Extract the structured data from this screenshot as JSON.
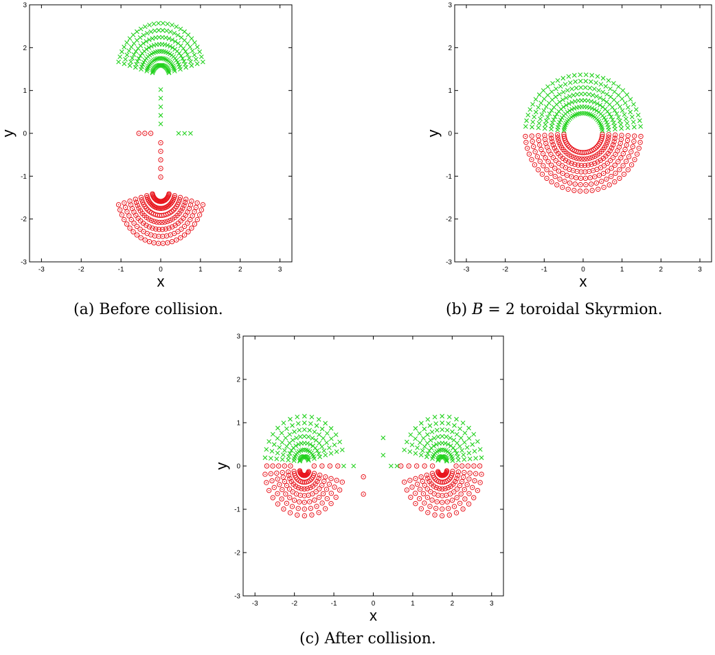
{
  "captions": {
    "a": "(a) Before collision.",
    "b_prefix": "(b) ",
    "b_var": "B",
    "b_suffix": " = 2 toroidal Skyrmion.",
    "c": "(c) After collision."
  },
  "colors": {
    "circle_series": "#e8141c",
    "cross_series": "#22d11e"
  },
  "chart_data": [
    {
      "id": "a",
      "type": "scatter",
      "xlabel": "x",
      "ylabel": "y",
      "xlim": [
        -3.3,
        3.3
      ],
      "ylim": [
        -3,
        3
      ],
      "xticks": [
        "-3",
        "-2",
        "-1",
        "0",
        "1",
        "2",
        "3"
      ],
      "yticks": [
        "-3",
        "-2",
        "-1",
        "0",
        "1",
        "2",
        "3"
      ],
      "grid": false,
      "series": [
        {
          "marker": "circle",
          "structure": {
            "type": "fan",
            "cx": 0,
            "cy": -1.35,
            "r0": 0.24,
            "r1": 1.22,
            "sx": 0.9,
            "sy": 1,
            "rays": 26,
            "rings": 7,
            "a0": 195,
            "a1": 345
          }
        },
        {
          "marker": "cross",
          "structure": {
            "type": "fan",
            "cx": 0,
            "cy": 1.35,
            "r0": 0.24,
            "r1": 1.22,
            "sx": 0.9,
            "sy": 1,
            "rays": 26,
            "rings": 7,
            "a0": 15,
            "a1": 165
          }
        },
        {
          "marker": "circle",
          "points": [
            [
              -0.55,
              0
            ],
            [
              -0.4,
              0
            ],
            [
              -0.25,
              0
            ],
            [
              0,
              -0.22
            ],
            [
              0,
              -0.42
            ],
            [
              0,
              -0.62
            ],
            [
              0,
              -0.82
            ],
            [
              0,
              -1.02
            ]
          ]
        },
        {
          "marker": "cross",
          "points": [
            [
              0.45,
              0
            ],
            [
              0.6,
              0
            ],
            [
              0.75,
              0
            ],
            [
              0,
              0.22
            ],
            [
              0,
              0.42
            ],
            [
              0,
              0.62
            ],
            [
              0,
              0.82
            ],
            [
              0,
              1.02
            ]
          ]
        }
      ]
    },
    {
      "id": "b",
      "type": "scatter",
      "xlabel": "x",
      "ylabel": "y",
      "xlim": [
        -3.3,
        3.3
      ],
      "ylim": [
        -3,
        3
      ],
      "xticks": [
        "-3",
        "-2",
        "-1",
        "0",
        "1",
        "2",
        "3"
      ],
      "yticks": [
        "-3",
        "-2",
        "-1",
        "0",
        "1",
        "2",
        "3"
      ],
      "grid": false,
      "series": [
        {
          "marker": "circle",
          "structure": {
            "type": "fan",
            "cx": 0,
            "cy": 0,
            "r0": 0.45,
            "r1": 1.35,
            "sx": 1.1,
            "sy": 1,
            "rays": 30,
            "rings": 7,
            "a0": 183,
            "a1": 357
          }
        },
        {
          "marker": "cross",
          "structure": {
            "type": "fan",
            "cx": 0,
            "cy": 0.02,
            "r0": 0.45,
            "r1": 1.35,
            "sx": 1.1,
            "sy": 1,
            "rays": 30,
            "rings": 7,
            "a0": 6,
            "a1": 174
          }
        }
      ]
    },
    {
      "id": "c",
      "type": "scatter",
      "xlabel": "x",
      "ylabel": "y",
      "xlim": [
        -3.3,
        3.3
      ],
      "ylim": [
        -3,
        3
      ],
      "xticks": [
        "-3",
        "-2",
        "-1",
        "0",
        "1",
        "2",
        "3"
      ],
      "yticks": [
        "-3",
        "-2",
        "-1",
        "0",
        "1",
        "2",
        "3"
      ],
      "grid": false,
      "series": [
        {
          "marker": "circle",
          "structure": {
            "type": "fan",
            "cx": -1.75,
            "cy": -0.1,
            "r0": 0.12,
            "r1": 1.05,
            "sx": 0.95,
            "sy": 1,
            "rays": 16,
            "rings": 7,
            "a0": 185,
            "a1": 345
          }
        },
        {
          "marker": "cross",
          "structure": {
            "type": "fan",
            "cx": -1.75,
            "cy": 0.1,
            "r0": 0.12,
            "r1": 1.05,
            "sx": 0.95,
            "sy": 1,
            "rays": 16,
            "rings": 7,
            "a0": 15,
            "a1": 175
          }
        },
        {
          "marker": "circle",
          "structure": {
            "type": "fan",
            "cx": 1.75,
            "cy": -0.1,
            "r0": 0.12,
            "r1": 1.05,
            "sx": 0.95,
            "sy": 1,
            "rays": 16,
            "rings": 7,
            "a0": 195,
            "a1": 355
          }
        },
        {
          "marker": "cross",
          "structure": {
            "type": "fan",
            "cx": 1.75,
            "cy": 0.1,
            "r0": 0.12,
            "r1": 1.05,
            "sx": 0.95,
            "sy": 1,
            "rays": 16,
            "rings": 7,
            "a0": 5,
            "a1": 165
          }
        },
        {
          "marker": "circle",
          "points": [
            [
              -2.7,
              0
            ],
            [
              -2.55,
              0
            ],
            [
              -2.4,
              0
            ],
            [
              -2.25,
              0
            ],
            [
              -2.1,
              0
            ],
            [
              -1.5,
              0
            ],
            [
              -1.3,
              0
            ],
            [
              -1.1,
              0
            ],
            [
              -0.9,
              0
            ],
            [
              -0.25,
              -0.25
            ],
            [
              -0.25,
              -0.65
            ],
            [
              2.7,
              0
            ],
            [
              2.55,
              0
            ],
            [
              2.4,
              0
            ],
            [
              2.25,
              0
            ],
            [
              2.1,
              0
            ],
            [
              1.5,
              0
            ],
            [
              1.3,
              0
            ],
            [
              1.1,
              0
            ],
            [
              0.9,
              0
            ],
            [
              0.7,
              0
            ]
          ]
        },
        {
          "marker": "cross",
          "points": [
            [
              -0.75,
              0
            ],
            [
              -0.5,
              0
            ],
            [
              0.25,
              0.25
            ],
            [
              0.25,
              0.65
            ],
            [
              0.6,
              0
            ],
            [
              0.45,
              0
            ]
          ]
        }
      ]
    }
  ]
}
